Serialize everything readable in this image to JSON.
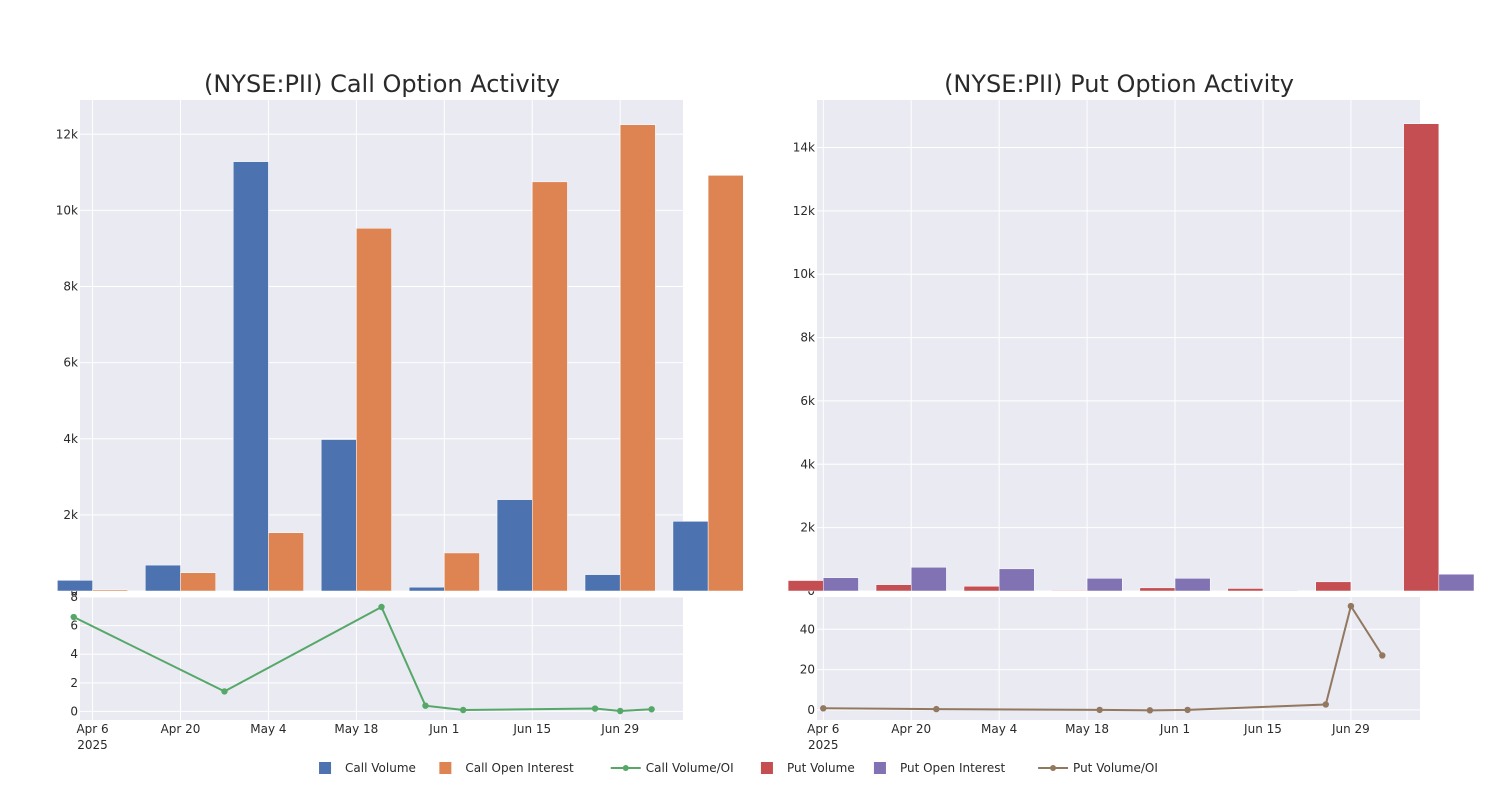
{
  "colors": {
    "background": "#ffffff",
    "plot_bg": "#eaeaf2",
    "grid": "#ffffff",
    "call_volume": "#4c72b0",
    "call_oi": "#dd8452",
    "call_ratio": "#55a868",
    "put_volume": "#c44e52",
    "put_oi": "#8172b3",
    "put_ratio": "#937860"
  },
  "legend": [
    {
      "label": "Call Volume",
      "kind": "square",
      "color": "#4c72b0"
    },
    {
      "label": "Call Open Interest",
      "kind": "square",
      "color": "#dd8452"
    },
    {
      "label": "Call Volume/OI",
      "kind": "line",
      "color": "#55a868"
    },
    {
      "label": "Put Volume",
      "kind": "square",
      "color": "#c44e52"
    },
    {
      "label": "Put Open Interest",
      "kind": "square",
      "color": "#8172b3"
    },
    {
      "label": "Put Volume/OI",
      "kind": "line",
      "color": "#937860"
    }
  ],
  "chart_data": [
    {
      "type": "bar",
      "title": "(NYSE:PII) Call Option Activity",
      "bar_dates": [
        "2025-04-06",
        "2025-04-20",
        "2025-05-04",
        "2025-05-18",
        "2025-06-01",
        "2025-06-15",
        "2025-06-29",
        "2025-07-13"
      ],
      "series": [
        {
          "name": "Call Volume",
          "color": "#4c72b0",
          "values": [
            280,
            680,
            11280,
            3980,
            100,
            2400,
            430,
            1830
          ]
        },
        {
          "name": "Call Open Interest",
          "color": "#dd8452",
          "values": [
            30,
            480,
            1530,
            9530,
            1000,
            10750,
            12250,
            10920
          ]
        }
      ],
      "y_ticks": [
        0,
        2000,
        4000,
        6000,
        8000,
        10000,
        12000
      ],
      "y_tick_labels": [
        "0",
        "2k",
        "4k",
        "6k",
        "8k",
        "10k",
        "12k"
      ],
      "ylim": [
        0,
        12900
      ],
      "ratio": {
        "name": "Call Volume/OI",
        "color": "#55a868",
        "points": [
          {
            "date": "2025-04-03",
            "value": 6.6
          },
          {
            "date": "2025-04-27",
            "value": 1.4
          },
          {
            "date": "2025-05-22",
            "value": 7.3
          },
          {
            "date": "2025-05-29",
            "value": 0.4
          },
          {
            "date": "2025-06-04",
            "value": 0.1
          },
          {
            "date": "2025-06-25",
            "value": 0.2
          },
          {
            "date": "2025-06-29",
            "value": 0.03
          },
          {
            "date": "2025-07-04",
            "value": 0.15
          }
        ],
        "y_ticks": [
          0,
          2,
          4,
          6,
          8
        ],
        "ylim": [
          -0.6,
          8.0
        ]
      },
      "x_ticks": [
        {
          "date": "2025-04-06",
          "label": "Apr 6",
          "sublabel": "2025"
        },
        {
          "date": "2025-04-20",
          "label": "Apr 20"
        },
        {
          "date": "2025-05-04",
          "label": "May 4"
        },
        {
          "date": "2025-05-18",
          "label": "May 18"
        },
        {
          "date": "2025-06-01",
          "label": "Jun 1"
        },
        {
          "date": "2025-06-15",
          "label": "Jun 15"
        },
        {
          "date": "2025-06-29",
          "label": "Jun 29"
        }
      ],
      "xlim": [
        "2025-04-04",
        "2025-07-09"
      ],
      "grid": true
    },
    {
      "type": "bar",
      "title": "(NYSE:PII) Put Option Activity",
      "bar_dates": [
        "2025-04-06",
        "2025-04-20",
        "2025-05-04",
        "2025-05-18",
        "2025-06-01",
        "2025-06-15",
        "2025-06-29",
        "2025-07-13"
      ],
      "series": [
        {
          "name": "Put Volume",
          "color": "#c44e52",
          "values": [
            330,
            200,
            150,
            20,
            100,
            80,
            290,
            14750
          ]
        },
        {
          "name": "Put Open Interest",
          "color": "#8172b3",
          "values": [
            420,
            750,
            700,
            400,
            400,
            20,
            0,
            530
          ]
        }
      ],
      "y_ticks": [
        0,
        2000,
        4000,
        6000,
        8000,
        10000,
        12000,
        14000
      ],
      "y_tick_labels": [
        "0",
        "2k",
        "4k",
        "6k",
        "8k",
        "10k",
        "12k",
        "14k"
      ],
      "ylim": [
        0,
        15500
      ],
      "ratio": {
        "name": "Put Volume/OI",
        "color": "#937860",
        "points": [
          {
            "date": "2025-04-06",
            "value": 0.8
          },
          {
            "date": "2025-04-24",
            "value": 0.4
          },
          {
            "date": "2025-05-20",
            "value": 0.0
          },
          {
            "date": "2025-05-28",
            "value": -0.2
          },
          {
            "date": "2025-06-03",
            "value": 0.0
          },
          {
            "date": "2025-06-25",
            "value": 2.7
          },
          {
            "date": "2025-06-29",
            "value": 51.5
          },
          {
            "date": "2025-07-04",
            "value": 27.0
          }
        ],
        "y_ticks": [
          0,
          20,
          40
        ],
        "ylim": [
          -5.0,
          56.0
        ]
      },
      "x_ticks": [
        {
          "date": "2025-04-06",
          "label": "Apr 6",
          "sublabel": "2025"
        },
        {
          "date": "2025-04-20",
          "label": "Apr 20"
        },
        {
          "date": "2025-05-04",
          "label": "May 4"
        },
        {
          "date": "2025-05-18",
          "label": "May 18"
        },
        {
          "date": "2025-06-01",
          "label": "Jun 1"
        },
        {
          "date": "2025-06-15",
          "label": "Jun 15"
        },
        {
          "date": "2025-06-29",
          "label": "Jun 29"
        }
      ],
      "xlim": [
        "2025-04-05",
        "2025-07-10"
      ],
      "grid": true
    }
  ]
}
